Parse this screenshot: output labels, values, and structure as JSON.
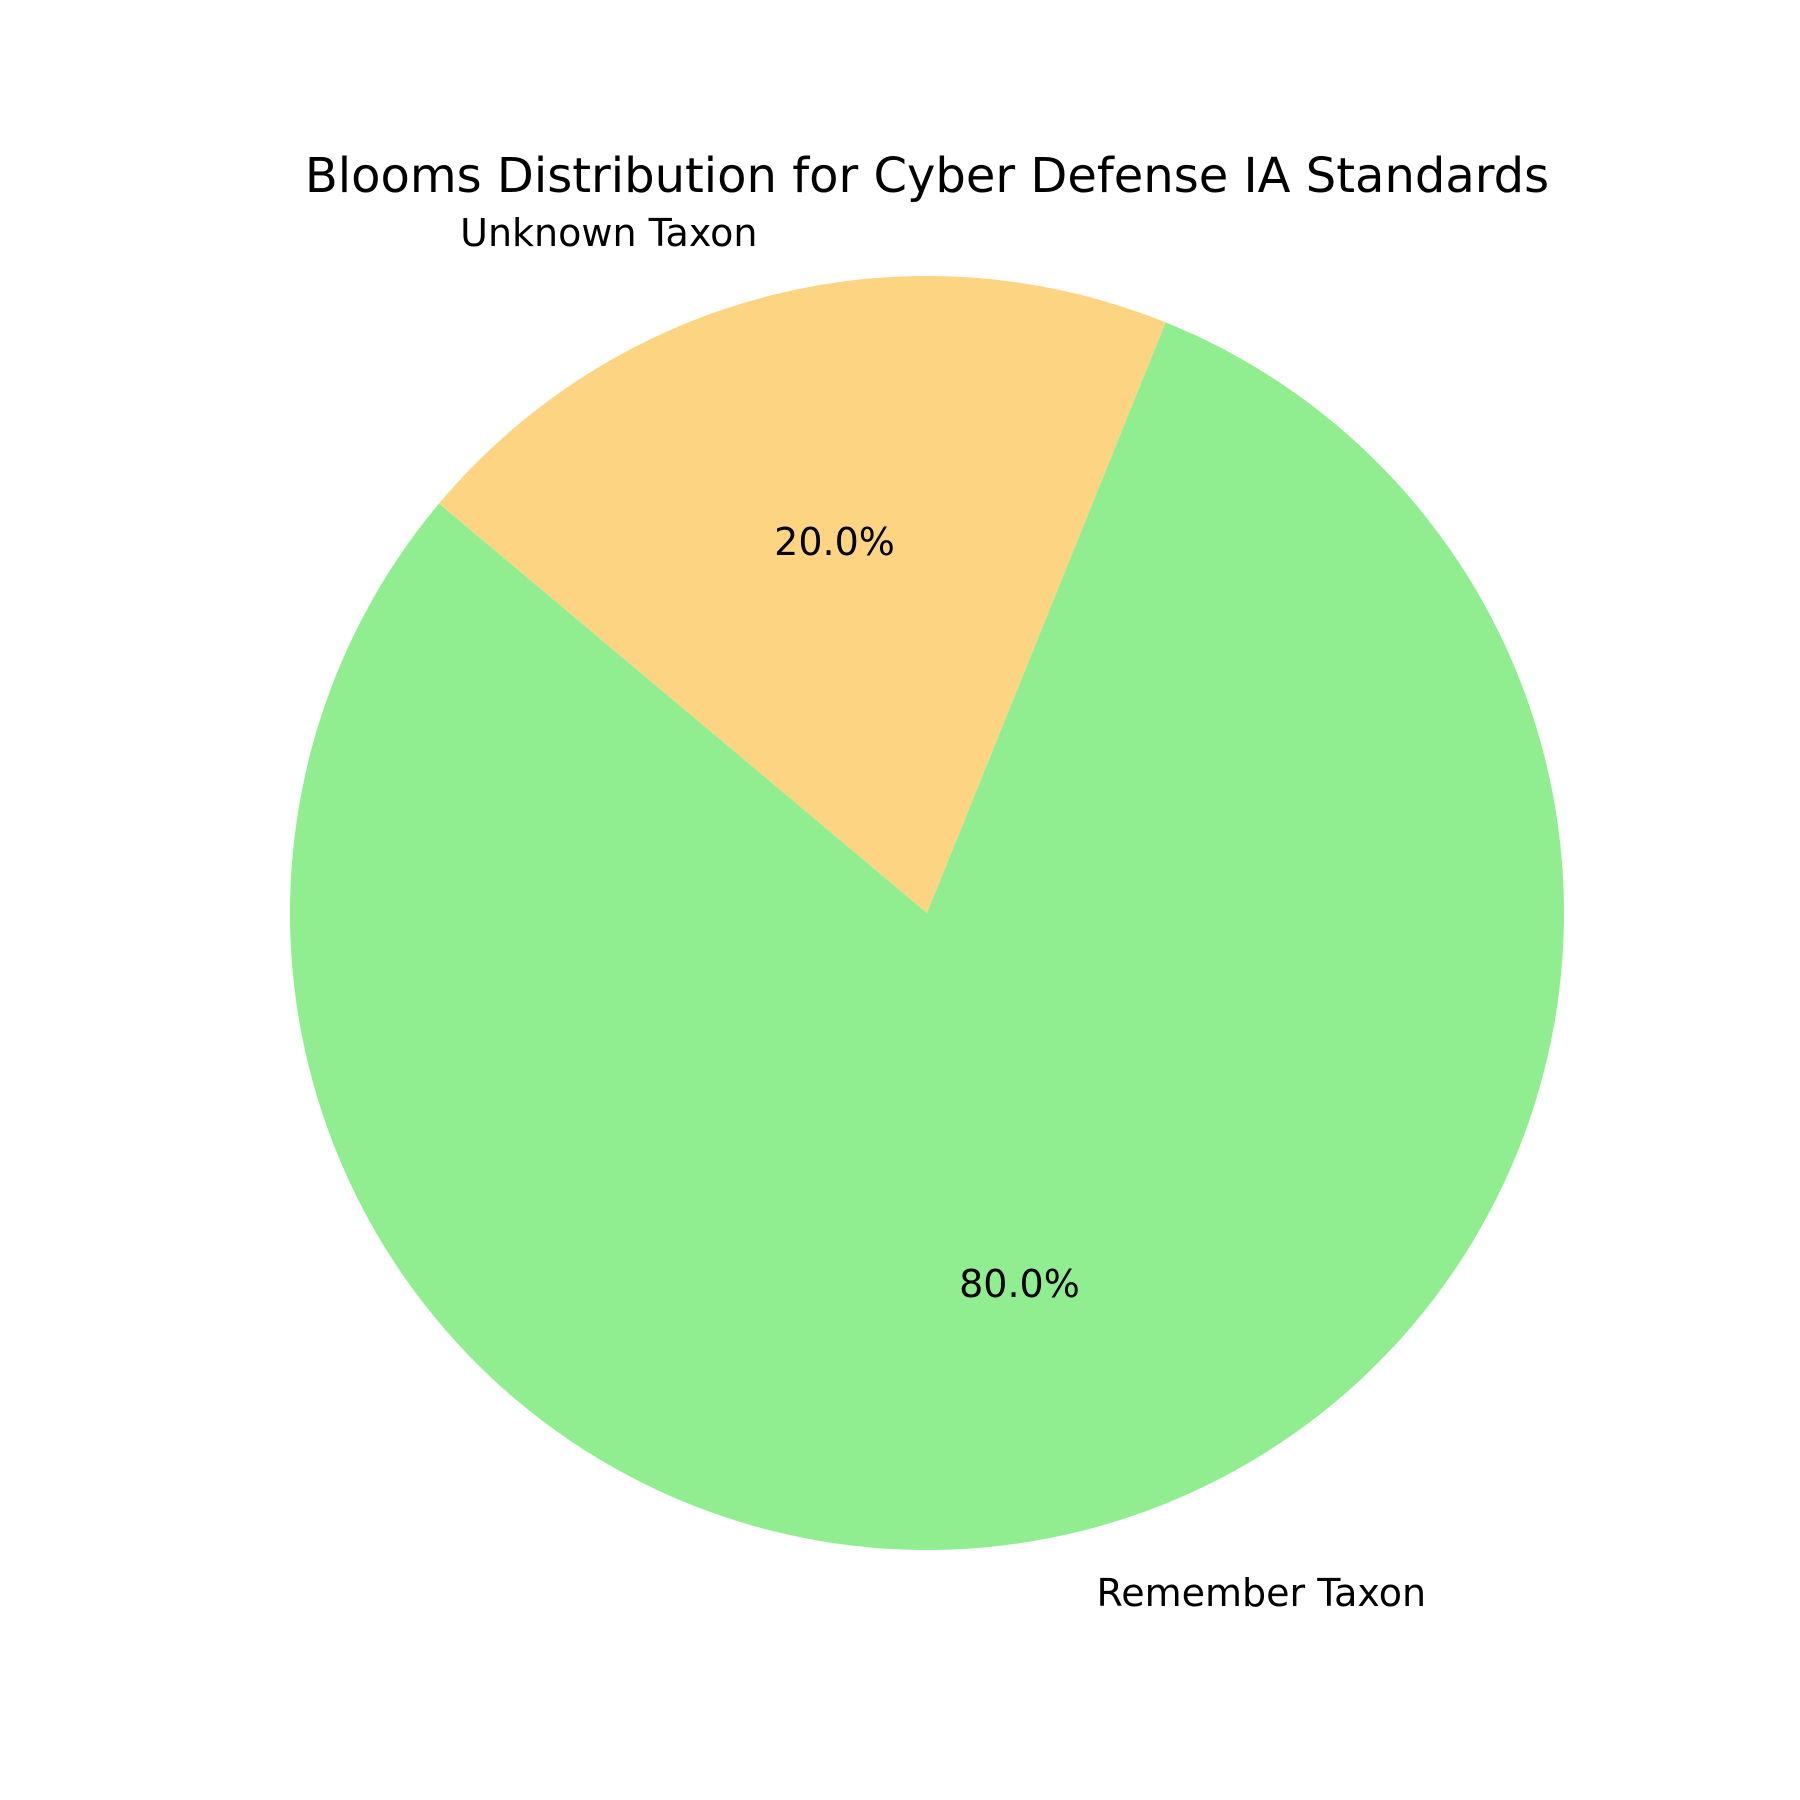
{
  "chart_data": {
    "type": "pie",
    "title": "Blooms Distribution for Cyber Defense IA Standards",
    "start_angle_deg": 140,
    "direction": "counterclockwise",
    "slices": [
      {
        "label": "Remember Taxon",
        "value": 80.0,
        "pct_label": "80.0%",
        "color": "#90ee90"
      },
      {
        "label": "Unknown Taxon",
        "value": 20.0,
        "pct_label": "20.0%",
        "color": "#fdd582"
      }
    ]
  }
}
